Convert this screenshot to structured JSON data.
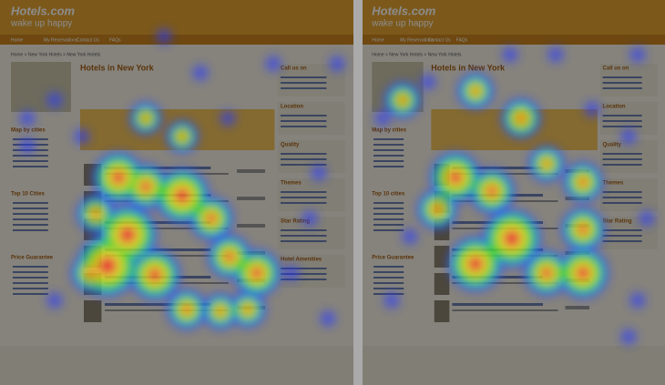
{
  "panels": [
    {
      "logo": "Hotels.com",
      "tagline": "wake up happy",
      "nav": [
        "Home",
        "My Reservations",
        "Contact Us",
        "FAQs"
      ],
      "breadcrumb": "Home > New York Hotels > New York Hotels",
      "title": "Hotels in New York",
      "left_sidebar": [
        "Map by cities",
        "Top 10 Cities",
        "Price Guarantee"
      ],
      "right_sidebar": [
        "Call us on",
        "Location",
        "Quality",
        "Themes",
        "Star Rating",
        "Hotel Amenities"
      ]
    },
    {
      "logo": "Hotels.com",
      "tagline": "wake up happy",
      "nav": [
        "Home",
        "My Reservations",
        "Contact Us",
        "FAQs"
      ],
      "breadcrumb": "Home > New York Hotels > New York Hotels",
      "title": "Hotels in New York",
      "left_sidebar": [
        "Map by cities",
        "Top 10 cities",
        "Price Guarantee"
      ],
      "right_sidebar": [
        "Call us on",
        "Location",
        "Quality",
        "Themes",
        "Star Rating"
      ]
    }
  ]
}
